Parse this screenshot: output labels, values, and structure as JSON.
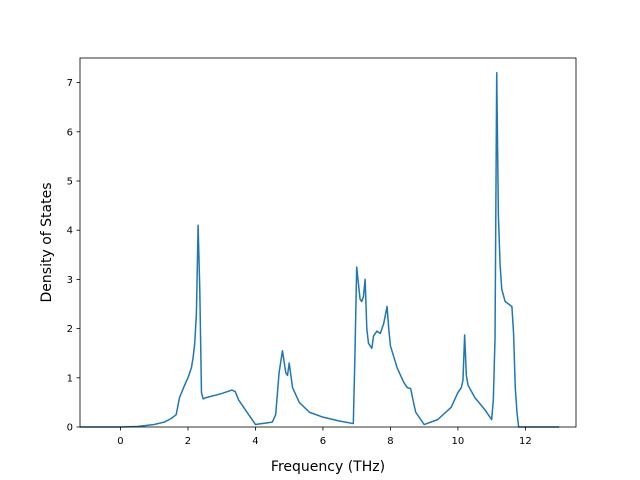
{
  "chart_data": {
    "type": "line",
    "title": "",
    "xlabel": "Frequency (THz)",
    "ylabel": "Density of States",
    "xlim": [
      -1.2,
      13.5
    ],
    "ylim": [
      0,
      7.5
    ],
    "xticks": [
      0,
      2,
      4,
      6,
      8,
      10,
      12
    ],
    "yticks": [
      0,
      1,
      2,
      3,
      4,
      5,
      6,
      7
    ],
    "grid": false,
    "legend": "none",
    "series": [
      {
        "color": "#1f77b4",
        "x": [
          -1.2,
          0.0,
          0.5,
          1.0,
          1.3,
          1.5,
          1.65,
          1.75,
          1.9,
          2.0,
          2.1,
          2.15,
          2.2,
          2.25,
          2.3,
          2.35,
          2.4,
          2.45,
          2.55,
          3.0,
          3.3,
          3.4,
          3.5,
          3.8,
          4.0,
          4.5,
          4.6,
          4.7,
          4.8,
          4.9,
          4.95,
          5.0,
          5.1,
          5.3,
          5.6,
          6.0,
          6.5,
          6.9,
          6.95,
          7.0,
          7.1,
          7.15,
          7.2,
          7.25,
          7.3,
          7.35,
          7.45,
          7.5,
          7.6,
          7.7,
          7.8,
          7.9,
          7.95,
          8.0,
          8.2,
          8.4,
          8.5,
          8.6,
          8.7,
          8.75,
          9.0,
          9.4,
          9.8,
          10.0,
          10.1,
          10.15,
          10.2,
          10.25,
          10.3,
          10.5,
          10.8,
          10.9,
          11.0,
          11.05,
          11.1,
          11.15,
          11.2,
          11.25,
          11.3,
          11.4,
          11.5,
          11.6,
          11.65,
          11.7,
          11.75,
          11.8,
          11.9,
          12.0,
          13.0
        ],
        "values": [
          0.0,
          0.0,
          0.01,
          0.05,
          0.1,
          0.17,
          0.25,
          0.6,
          0.85,
          1.0,
          1.2,
          1.4,
          1.7,
          2.3,
          4.1,
          2.8,
          0.7,
          0.57,
          0.6,
          0.68,
          0.75,
          0.72,
          0.55,
          0.25,
          0.05,
          0.1,
          0.25,
          1.1,
          1.55,
          1.1,
          1.05,
          1.3,
          0.8,
          0.5,
          0.3,
          0.2,
          0.12,
          0.07,
          1.5,
          3.25,
          2.6,
          2.55,
          2.65,
          3.0,
          2.0,
          1.7,
          1.6,
          1.85,
          1.95,
          1.9,
          2.1,
          2.45,
          2.0,
          1.65,
          1.2,
          0.9,
          0.8,
          0.78,
          0.45,
          0.3,
          0.05,
          0.15,
          0.4,
          0.7,
          0.8,
          0.95,
          1.87,
          1.05,
          0.85,
          0.6,
          0.35,
          0.25,
          0.15,
          0.55,
          1.8,
          7.2,
          4.3,
          3.3,
          2.8,
          2.55,
          2.5,
          2.45,
          1.9,
          0.8,
          0.3,
          0.0,
          0.0,
          0.0,
          0.0
        ]
      }
    ]
  }
}
